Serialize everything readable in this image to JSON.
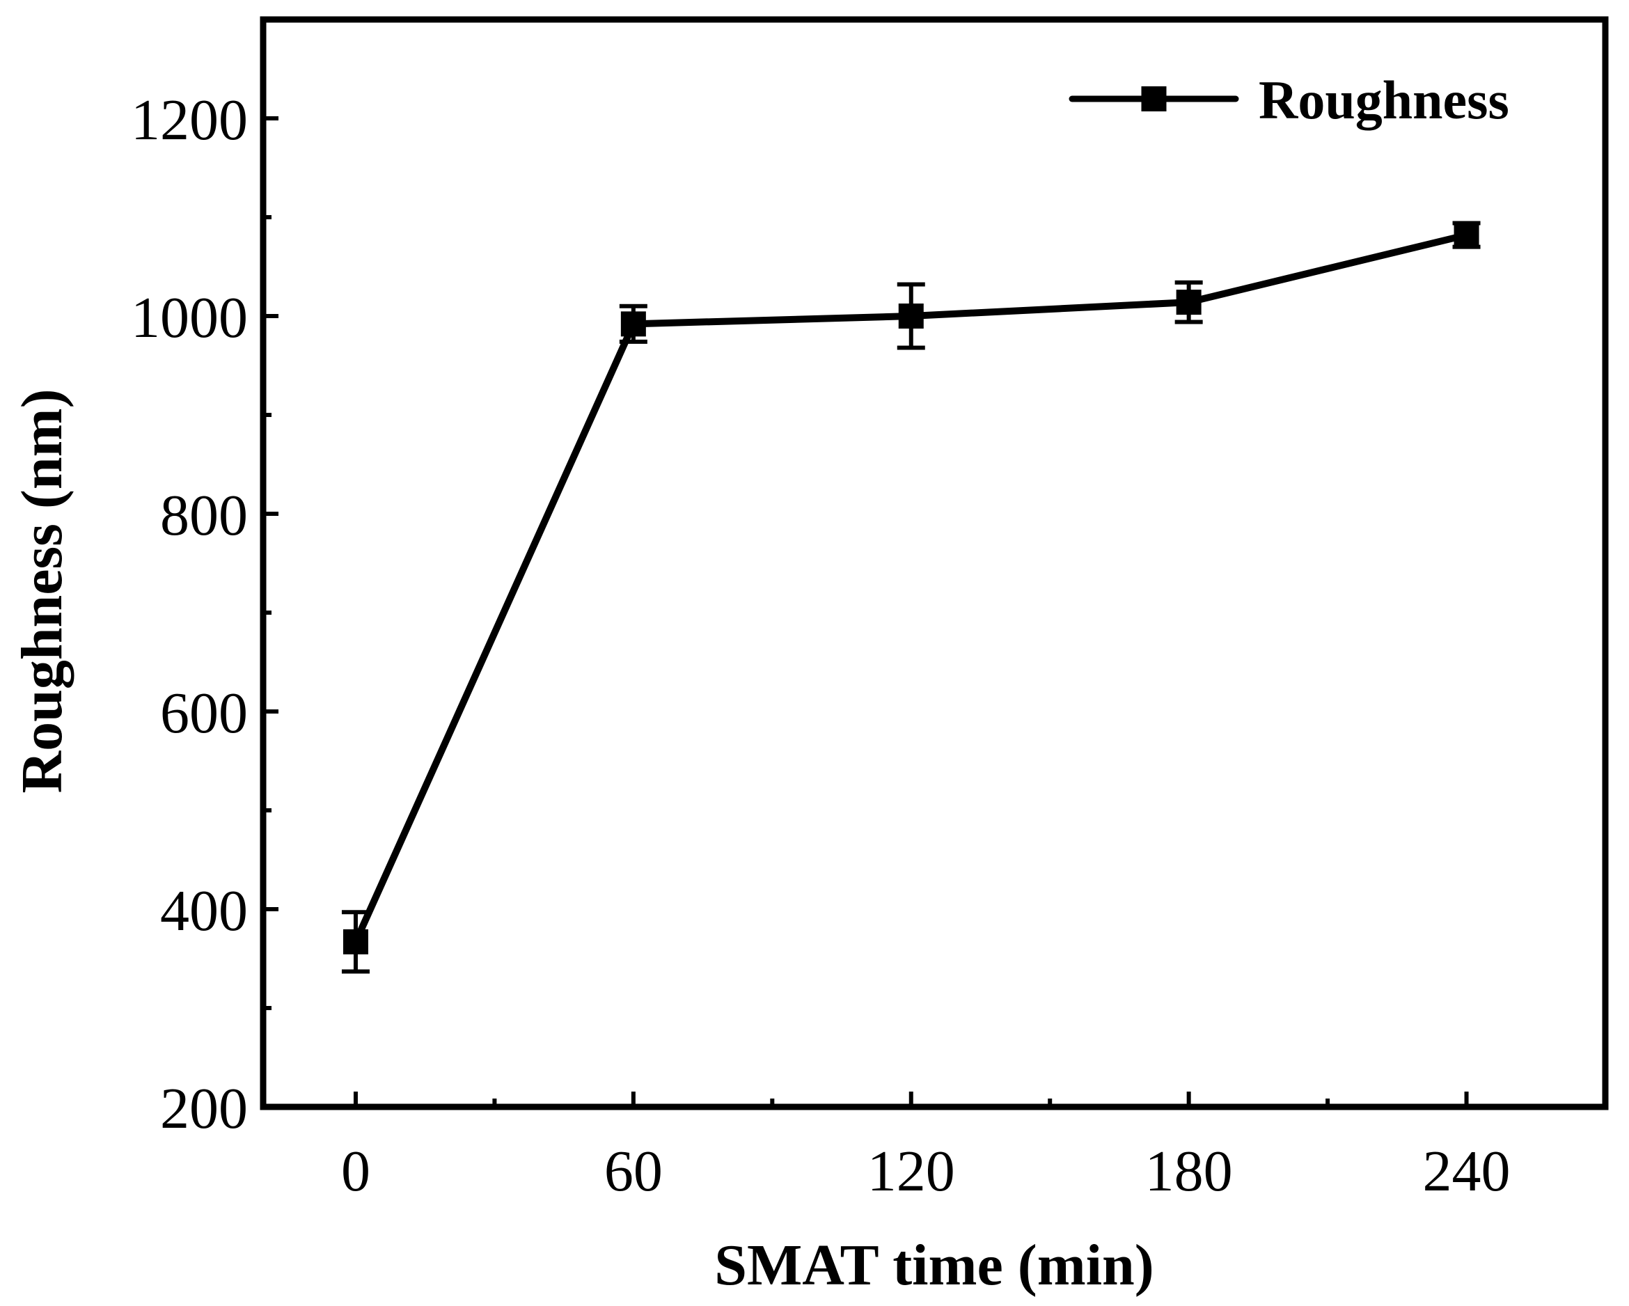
{
  "chart_data": {
    "type": "line",
    "title": "",
    "xlabel": "SMAT time (min)",
    "ylabel": "Roughness (nm)",
    "xlim": [
      -20,
      270
    ],
    "ylim": [
      200,
      1300
    ],
    "x_ticks": [
      0,
      60,
      120,
      180,
      240
    ],
    "x_tick_labels": [
      "0",
      "60",
      "120",
      "180",
      "240"
    ],
    "x_minor_ticks": [
      30,
      90,
      150,
      210,
      270
    ],
    "y_ticks": [
      200,
      400,
      600,
      800,
      1000,
      1200
    ],
    "y_tick_labels": [
      "200",
      "400",
      "600",
      "800",
      "1000",
      "1200"
    ],
    "y_minor_ticks": [
      300,
      500,
      700,
      900,
      1100
    ],
    "grid": false,
    "legend_position": "top-right",
    "colors": {
      "line": "#000000",
      "background": "#ffffff"
    },
    "series": [
      {
        "name": "Roughness",
        "marker": "square",
        "x": [
          0,
          60,
          120,
          180,
          240
        ],
        "values": [
          367,
          992,
          1000,
          1014,
          1082
        ],
        "errors": [
          30,
          18,
          32,
          20,
          12
        ]
      }
    ]
  }
}
